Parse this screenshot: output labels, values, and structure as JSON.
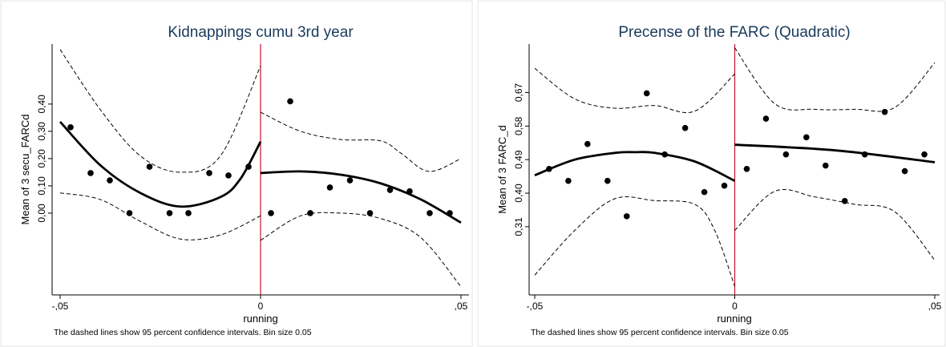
{
  "chart_data": [
    {
      "type": "scatter",
      "title": "Kidnappings cumu 3rd year",
      "xlabel": "running",
      "ylabel": "Mean of 3 secu_FARCd",
      "note": "The dashed lines show 95 percent confidence intervals. Bin size 0.05",
      "xlim": [
        -0.052,
        0.052
      ],
      "ylim": [
        -0.3,
        0.62
      ],
      "xticks": [
        {
          "value": -0.05,
          "label": "-,05"
        },
        0,
        {
          "value": 0.05,
          "label": ",05"
        }
      ],
      "yticks": [
        {
          "value": 0,
          "label": "0,00"
        },
        {
          "value": 0.1,
          "label": "0,10"
        },
        {
          "value": 0.2,
          "label": "0,20"
        },
        {
          "value": 0.3,
          "label": "0,30"
        },
        {
          "value": 0.4,
          "label": "0,40"
        }
      ],
      "cutoff": 0,
      "cutoff_color": "#c8102e",
      "scatter": {
        "color": "#000000",
        "x": [
          -0.0474,
          -0.0424,
          -0.0376,
          -0.0327,
          -0.0277,
          -0.0227,
          -0.018,
          -0.0128,
          -0.008,
          -0.003,
          0.0026,
          0.0074,
          0.0124,
          0.0173,
          0.0223,
          0.0273,
          0.0323,
          0.0372,
          0.0422,
          0.0472
        ],
        "values": [
          0.315,
          0.147,
          0.12,
          0,
          0.17,
          0,
          0,
          0.147,
          0.138,
          0.17,
          0,
          0.41,
          0,
          0.094,
          0.12,
          0,
          0.085,
          0.08,
          0,
          0
        ]
      },
      "lines": [
        {
          "dashed": false,
          "color": "#000000",
          "x": [
            -0.05,
            -0.04,
            -0.03,
            -0.02,
            -0.01,
            -0.005,
            0
          ],
          "values": [
            0.335,
            0.176,
            0.074,
            0.024,
            0.059,
            0.126,
            0.262
          ]
        },
        {
          "dashed": false,
          "color": "#000000",
          "x": [
            0,
            0.01,
            0.02,
            0.03,
            0.04,
            0.05
          ],
          "values": [
            0.147,
            0.153,
            0.141,
            0.109,
            0.05,
            -0.035
          ]
        },
        {
          "dashed": true,
          "color": "#000000",
          "x": [
            -0.05,
            -0.04,
            -0.03,
            -0.02,
            -0.01,
            0
          ],
          "values": [
            0.6,
            0.38,
            0.21,
            0.15,
            0.21,
            0.54
          ]
        },
        {
          "dashed": true,
          "color": "#000000",
          "x": [
            -0.05,
            -0.04,
            -0.03,
            -0.02,
            -0.01,
            0
          ],
          "values": [
            0.074,
            0.05,
            -0.03,
            -0.095,
            -0.08,
            -0.01
          ]
        },
        {
          "dashed": true,
          "color": "#000000",
          "x": [
            0,
            0.01,
            0.02,
            0.03,
            0.035,
            0.042,
            0.05
          ],
          "values": [
            0.37,
            0.3,
            0.27,
            0.265,
            0.22,
            0.153,
            0.2
          ]
        },
        {
          "dashed": true,
          "color": "#000000",
          "x": [
            0,
            0.01,
            0.02,
            0.03,
            0.04,
            0.05
          ],
          "values": [
            -0.1,
            -0.01,
            0,
            -0.02,
            -0.09,
            -0.27
          ]
        }
      ]
    },
    {
      "type": "scatter",
      "title": "Precense of the FARC (Quadratic)",
      "xlabel": "running",
      "ylabel": "Mean of 3 FARC_d",
      "note": "The dashed lines show 95 percent confidence intervals. Bin size 0.05",
      "xlim": [
        -0.0514,
        0.0512
      ],
      "ylim": [
        0.127,
        0.8
      ],
      "xticks": [
        {
          "value": -0.05,
          "label": "-,05"
        },
        0,
        {
          "value": 0.05,
          "label": ",05"
        }
      ],
      "yticks": [
        {
          "value": 0.31,
          "label": "0,31"
        },
        {
          "value": 0.4,
          "label": "0,40"
        },
        {
          "value": 0.49,
          "label": "0,49"
        },
        {
          "value": 0.58,
          "label": "0,58"
        },
        {
          "value": 0.67,
          "label": "0,67"
        }
      ],
      "cutoff": 0,
      "cutoff_color": "#c8102e",
      "scatter": {
        "color": "#000000",
        "x": [
          -0.0464,
          -0.0416,
          -0.0368,
          -0.0318,
          -0.027,
          -0.022,
          -0.0175,
          -0.0124,
          -0.0076,
          -0.0026,
          0.003,
          0.0078,
          0.0128,
          0.0179,
          0.0227,
          0.0275,
          0.0325,
          0.0375,
          0.0425,
          0.0474
        ],
        "values": [
          0.465,
          0.433,
          0.532,
          0.433,
          0.338,
          0.668,
          0.504,
          0.575,
          0.403,
          0.42,
          0.465,
          0.6,
          0.504,
          0.55,
          0.474,
          0.379,
          0.504,
          0.618,
          0.459,
          0.504
        ]
      },
      "lines": [
        {
          "dashed": false,
          "color": "#000000",
          "x": [
            -0.05,
            -0.04,
            -0.03,
            -0.025,
            -0.02,
            -0.01,
            0
          ],
          "values": [
            0.448,
            0.49,
            0.508,
            0.51,
            0.508,
            0.485,
            0.433
          ]
        },
        {
          "dashed": false,
          "color": "#000000",
          "x": [
            0,
            0.025,
            0.05
          ],
          "values": [
            0.53,
            0.515,
            0.483
          ]
        },
        {
          "dashed": true,
          "color": "#000000",
          "x": [
            -0.05,
            -0.04,
            -0.03,
            -0.02,
            -0.01,
            0
          ],
          "values": [
            0.735,
            0.653,
            0.628,
            0.635,
            0.62,
            0.72
          ]
        },
        {
          "dashed": true,
          "color": "#000000",
          "x": [
            -0.05,
            -0.04,
            -0.03,
            -0.02,
            -0.01,
            -0.005,
            0
          ],
          "values": [
            0.18,
            0.3,
            0.385,
            0.38,
            0.37,
            0.3,
            0.15
          ]
        },
        {
          "dashed": true,
          "color": "#000000",
          "x": [
            0,
            0.01,
            0.02,
            0.03,
            0.04,
            0.05
          ],
          "values": [
            0.79,
            0.64,
            0.625,
            0.625,
            0.63,
            0.75
          ]
        },
        {
          "dashed": true,
          "color": "#000000",
          "x": [
            0,
            0.01,
            0.02,
            0.03,
            0.04,
            0.05
          ],
          "values": [
            0.3,
            0.405,
            0.39,
            0.37,
            0.35,
            0.22
          ]
        }
      ]
    }
  ]
}
